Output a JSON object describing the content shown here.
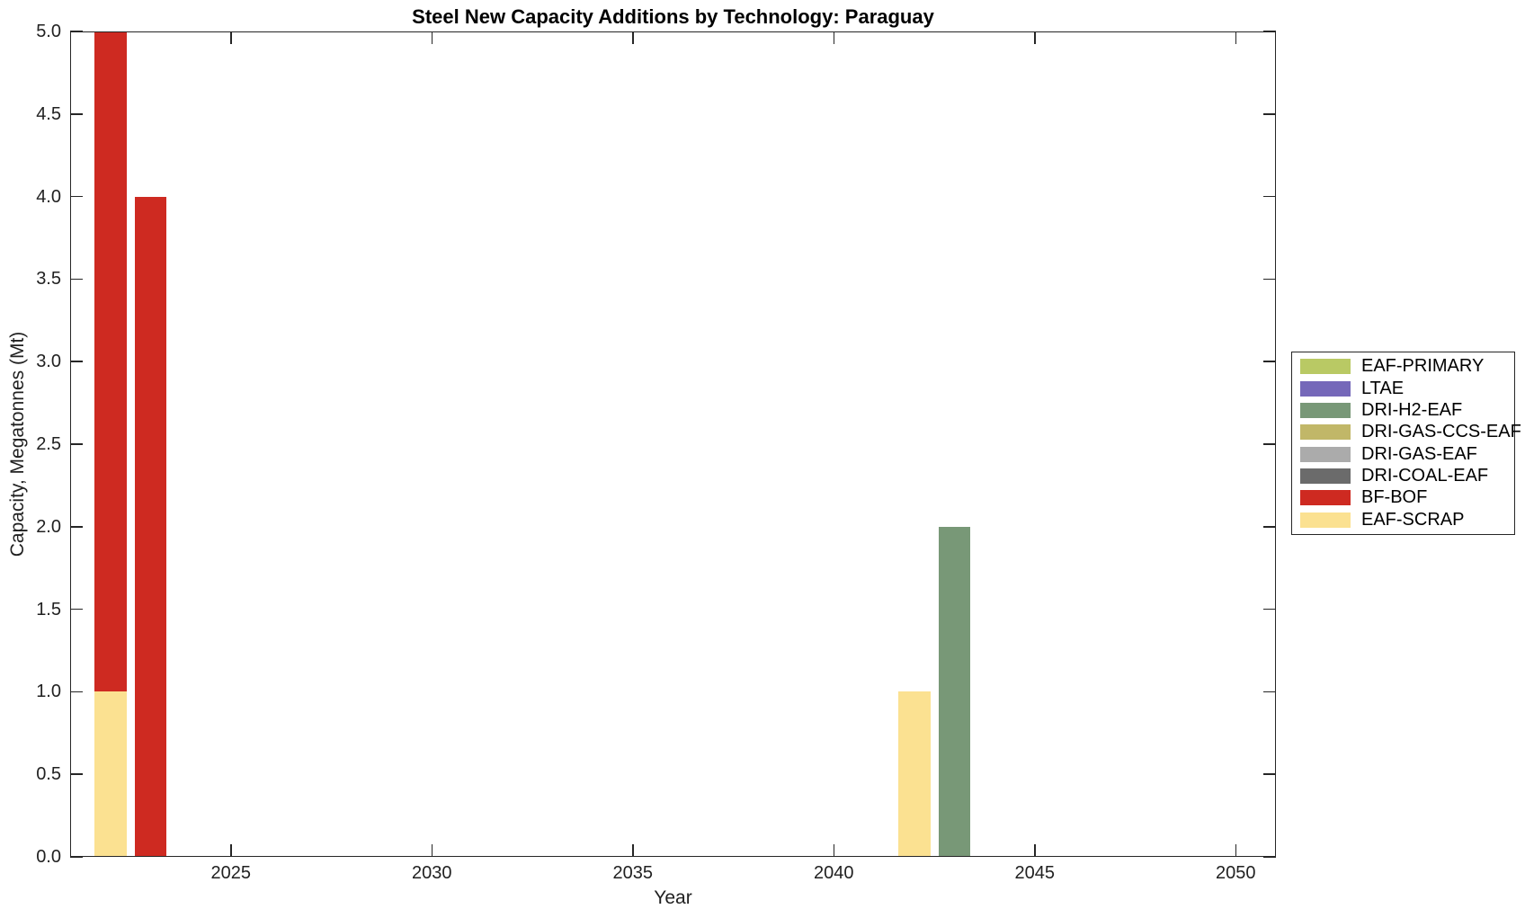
{
  "chart_data": {
    "type": "bar",
    "stacked": true,
    "title": "Steel New Capacity Additions by Technology: Paraguay",
    "xlabel": "Year",
    "ylabel": "Capacity, Megatonnes (Mt)",
    "xlim": [
      2021,
      2051
    ],
    "ylim": [
      0,
      5
    ],
    "xticks": [
      2025,
      2030,
      2035,
      2040,
      2045,
      2050
    ],
    "yticks": [
      0,
      0.5,
      1,
      1.5,
      2,
      2.5,
      3,
      3.5,
      4,
      4.5,
      5
    ],
    "ytick_labels": [
      "0.0",
      "0.5",
      "1.0",
      "1.5",
      "2.0",
      "2.5",
      "3.0",
      "3.5",
      "4.0",
      "4.5",
      "5.0"
    ],
    "bar_width_years": 0.8,
    "grid": false,
    "legend_position": "right-outside",
    "background_color": "#ffffff",
    "axis_color": "#262626",
    "stack_note": "segments stack bottom-to-top in reverse series order (EAF-SCRAP at bottom, BF-BOF above)",
    "series": [
      {
        "name": "EAF-PRIMARY",
        "color": "#b9c964",
        "points": []
      },
      {
        "name": "LTAE",
        "color": "#7568b9",
        "points": []
      },
      {
        "name": "DRI-H2-EAF",
        "color": "#789877",
        "points": [
          {
            "x": 2043,
            "y": 2.0
          }
        ]
      },
      {
        "name": "DRI-GAS-CCS-EAF",
        "color": "#c1b768",
        "points": []
      },
      {
        "name": "DRI-GAS-EAF",
        "color": "#ababab",
        "points": []
      },
      {
        "name": "DRI-COAL-EAF",
        "color": "#6b6b6b",
        "points": []
      },
      {
        "name": "BF-BOF",
        "color": "#ce2a21",
        "points": [
          {
            "x": 2022,
            "y": 4.0
          },
          {
            "x": 2023,
            "y": 4.0
          }
        ]
      },
      {
        "name": "EAF-SCRAP",
        "color": "#fbe191",
        "points": [
          {
            "x": 2022,
            "y": 1.0
          },
          {
            "x": 2042,
            "y": 1.0
          }
        ]
      }
    ]
  }
}
